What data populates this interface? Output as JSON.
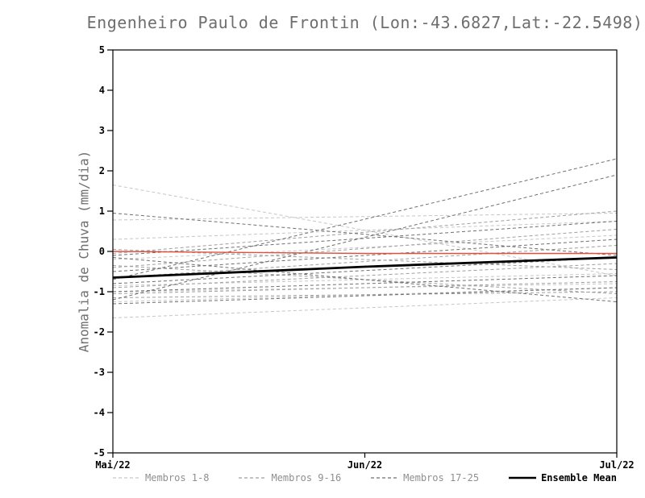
{
  "chart_data": {
    "type": "line",
    "title": "Engenheiro Paulo de Frontin (Lon:-43.6827,Lat:-22.5498)",
    "ylabel": "Anomalia de Chuva (mm/dia)",
    "xlabel": "",
    "ylim": [
      -5,
      5
    ],
    "yticks": [
      5,
      4,
      3,
      2,
      1,
      0,
      -1,
      -2,
      -3,
      -4,
      -5
    ],
    "x_categories": [
      "Mai/22",
      "Jun/22",
      "Jul/22"
    ],
    "grid": false,
    "legend_position": "bottom",
    "series_groups": [
      {
        "name": "Membros 1-8",
        "color": "#c6c6c6",
        "style": "dashed",
        "members": [
          [
            1.65,
            -0.6
          ],
          [
            0.78,
            0.95
          ],
          [
            0.3,
            0.75
          ],
          [
            -0.2,
            0.4
          ],
          [
            -0.85,
            -0.55
          ],
          [
            -1.0,
            -0.8
          ],
          [
            -1.25,
            -0.9
          ],
          [
            -1.65,
            -1.15
          ]
        ]
      },
      {
        "name": "Membros 9-16",
        "color": "#9f9f9f",
        "style": "dashed",
        "members": [
          [
            -0.05,
            1.0
          ],
          [
            -0.4,
            0.55
          ],
          [
            -0.65,
            0.15
          ],
          [
            -0.9,
            -0.3
          ],
          [
            -1.05,
            -0.75
          ],
          [
            -1.15,
            -1.0
          ],
          [
            0.05,
            -0.45
          ],
          [
            -0.35,
            -1.05
          ]
        ]
      },
      {
        "name": "Membros 17-25",
        "color": "#6f6f6f",
        "style": "dashed",
        "members": [
          [
            -0.7,
            2.3
          ],
          [
            -1.2,
            1.9
          ],
          [
            0.95,
            -0.1
          ],
          [
            -0.1,
            0.75
          ],
          [
            -0.5,
            0.3
          ],
          [
            -0.8,
            -0.15
          ],
          [
            -1.0,
            -0.6
          ],
          [
            -1.3,
            -0.9
          ],
          [
            -0.15,
            -1.25
          ]
        ]
      }
    ],
    "reference_line": {
      "name": "zero-reference",
      "color": "#e0503f",
      "values": [
        0.0,
        -0.05,
        -0.05
      ]
    },
    "ensemble_mean": {
      "name": "Ensemble Mean",
      "color": "#000000",
      "values": [
        -0.65,
        -0.38,
        -0.15
      ]
    },
    "legend": [
      {
        "label": "Membros 1-8",
        "color": "#c6c6c6",
        "style": "dashed"
      },
      {
        "label": "Membros 9-16",
        "color": "#9f9f9f",
        "style": "dashed"
      },
      {
        "label": "Membros 17-25",
        "color": "#6f6f6f",
        "style": "dashed"
      },
      {
        "label": "Ensemble Mean",
        "color": "#000000",
        "style": "solid"
      }
    ]
  }
}
